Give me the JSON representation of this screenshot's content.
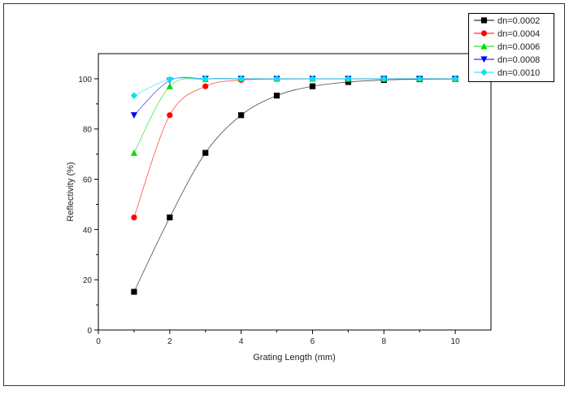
{
  "chart_data": {
    "type": "line",
    "title": "",
    "xlabel": "Grating Length (mm)",
    "ylabel": "Reflectivity (%)",
    "xlim": [
      0,
      11
    ],
    "ylim": [
      0,
      110
    ],
    "xticks": [
      0,
      2,
      4,
      6,
      8,
      10
    ],
    "yticks": [
      0,
      20,
      40,
      60,
      80,
      100
    ],
    "grid": false,
    "legend_position": "top-right",
    "x": [
      1,
      2,
      3,
      4,
      5,
      6,
      7,
      8,
      9,
      10
    ],
    "series": [
      {
        "name": "dn=0.0002",
        "color": "#000000",
        "marker": "square",
        "values": [
          15.2,
          44.8,
          70.5,
          85.5,
          93.3,
          97.0,
          98.7,
          99.5,
          99.8,
          99.9
        ]
      },
      {
        "name": "dn=0.0004",
        "color": "#ff0000",
        "marker": "circle",
        "values": [
          44.8,
          85.5,
          97.0,
          99.5,
          99.9,
          100,
          100,
          100,
          100,
          100
        ]
      },
      {
        "name": "dn=0.0006",
        "color": "#00dd00",
        "marker": "triangle-up",
        "values": [
          70.5,
          97.0,
          99.8,
          100,
          100,
          100,
          100,
          100,
          100,
          100
        ]
      },
      {
        "name": "dn=0.0008",
        "color": "#0000ff",
        "marker": "triangle-down",
        "values": [
          85.5,
          99.3,
          100,
          100,
          100,
          100,
          100,
          100,
          100,
          100
        ]
      },
      {
        "name": "dn=0.0010",
        "color": "#00e5ee",
        "marker": "diamond",
        "values": [
          93.3,
          99.8,
          100,
          100,
          100,
          100,
          100,
          100,
          100,
          100
        ]
      }
    ]
  }
}
